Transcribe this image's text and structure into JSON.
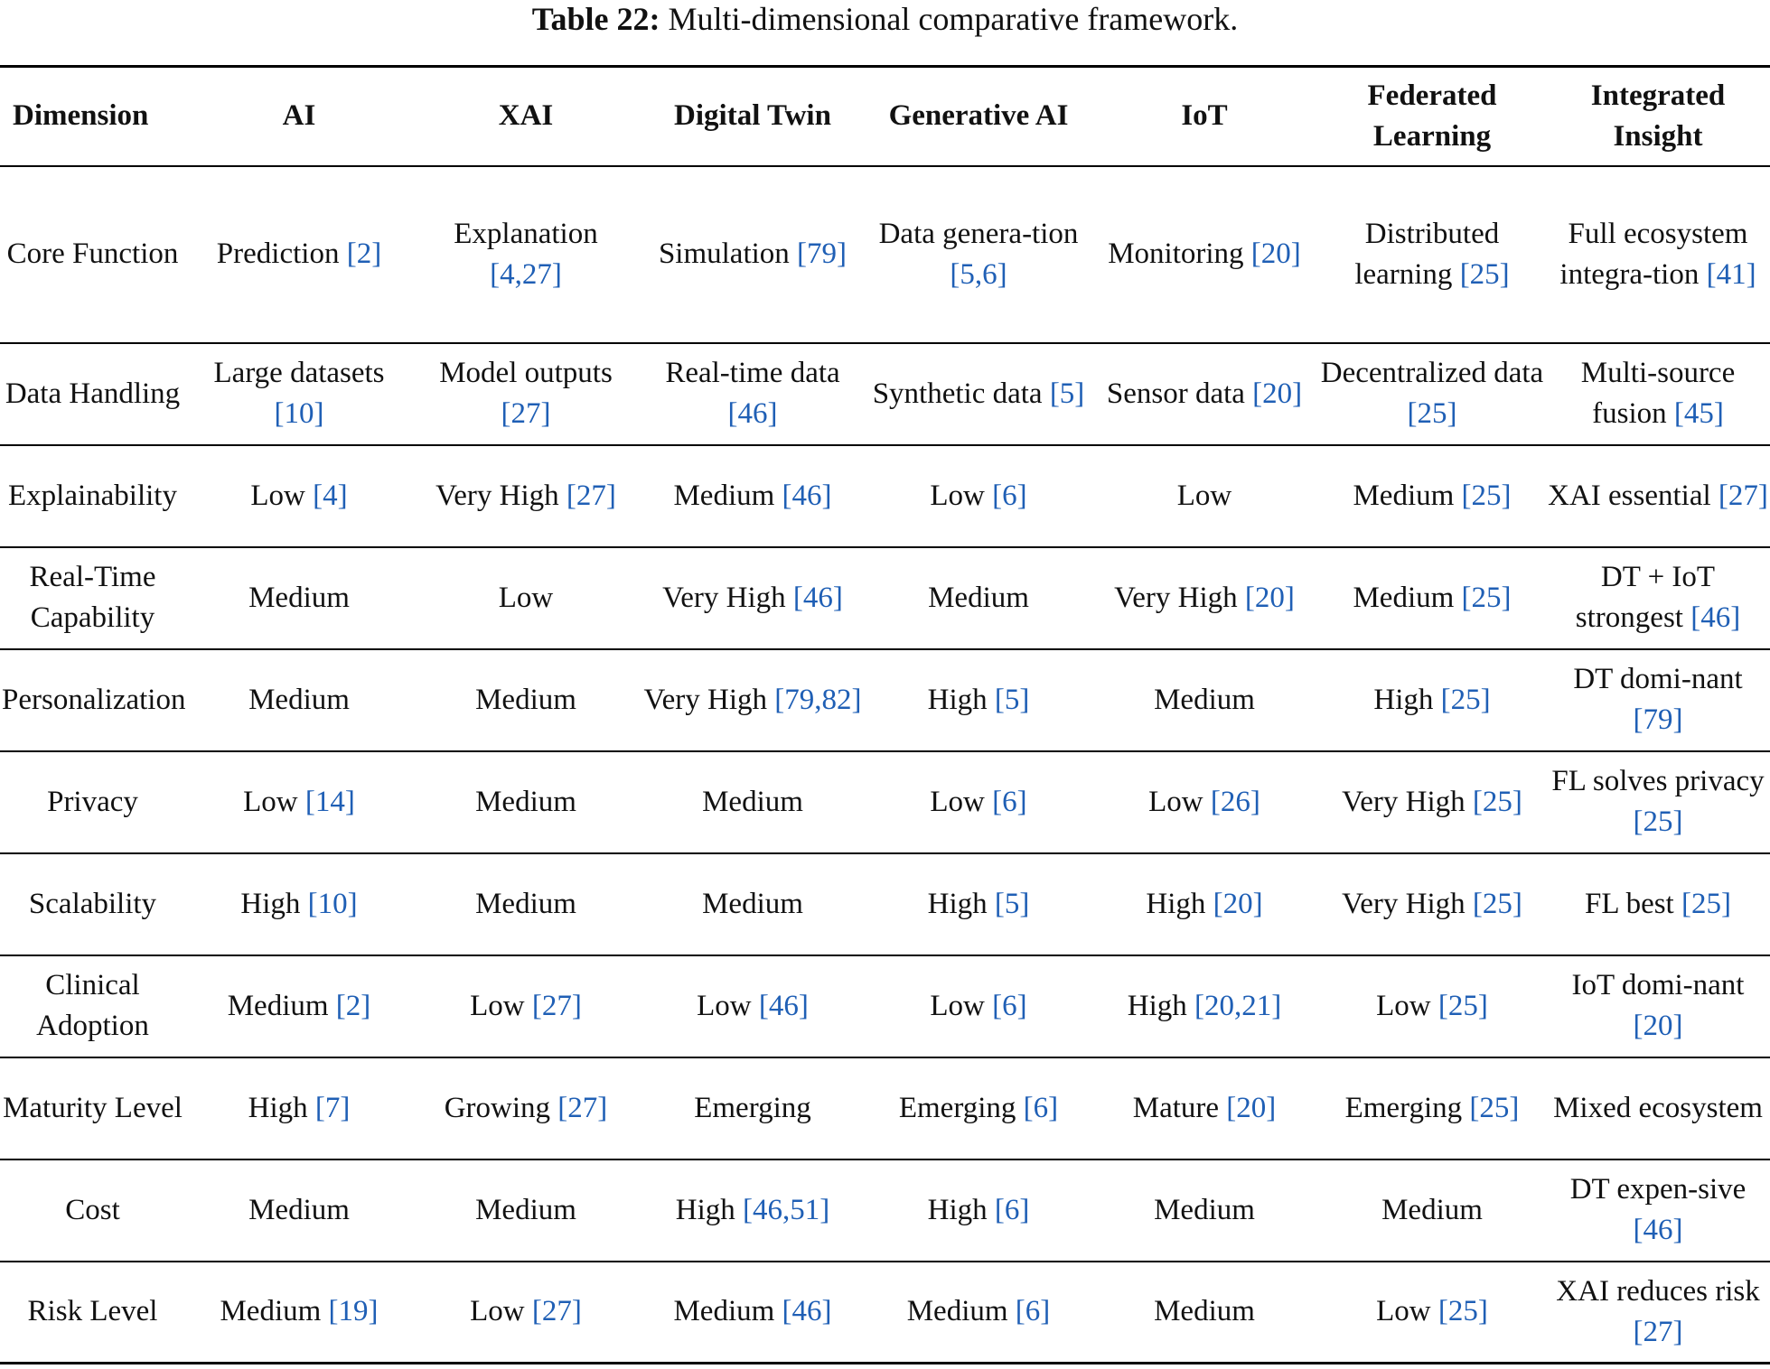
{
  "caption": {
    "label": "Table 22:",
    "text": " Multi-dimensional comparative framework."
  },
  "headers": [
    "Dimension",
    "AI",
    "XAI",
    "Digital Twin",
    "Generative AI",
    "IoT",
    "Federated Learning",
    "Integrated Insight"
  ],
  "rows": [
    {
      "dimension": "Core Function",
      "cells": [
        {
          "text": "Prediction ",
          "cite": "[2]"
        },
        {
          "text": "Explanation ",
          "cite": "[4,27]"
        },
        {
          "text": "Simulation ",
          "cite": "[79]"
        },
        {
          "text": "Data genera-tion ",
          "cite": "[5,6]"
        },
        {
          "text": "Monitoring ",
          "cite": "[20]"
        },
        {
          "text": "Distributed learning ",
          "cite": "[25]"
        },
        {
          "text": "Full ecosystem integra-tion ",
          "cite": "[41]"
        }
      ]
    },
    {
      "dimension": "Data Handling",
      "cells": [
        {
          "text": "Large datasets ",
          "cite": "[10]"
        },
        {
          "text": "Model outputs ",
          "cite": "[27]"
        },
        {
          "text": "Real-time data ",
          "cite": "[46]"
        },
        {
          "text": "Synthetic data ",
          "cite": "[5]"
        },
        {
          "text": "Sensor data ",
          "cite": "[20]"
        },
        {
          "text": "Decentralized data ",
          "cite": "[25]"
        },
        {
          "text": "Multi-source fusion ",
          "cite": "[45]"
        }
      ]
    },
    {
      "dimension": "Explainability",
      "cells": [
        {
          "text": "Low ",
          "cite": "[4]"
        },
        {
          "text": "Very High ",
          "cite": "[27]"
        },
        {
          "text": "Medium ",
          "cite": "[46]"
        },
        {
          "text": "Low ",
          "cite": "[6]"
        },
        {
          "text": "Low",
          "cite": ""
        },
        {
          "text": "Medium ",
          "cite": "[25]"
        },
        {
          "text": "XAI essential ",
          "cite": "[27]"
        }
      ]
    },
    {
      "dimension": "Real-Time Capability",
      "cells": [
        {
          "text": "Medium",
          "cite": ""
        },
        {
          "text": "Low",
          "cite": ""
        },
        {
          "text": "Very High ",
          "cite": "[46]"
        },
        {
          "text": "Medium",
          "cite": ""
        },
        {
          "text": "Very High ",
          "cite": "[20]"
        },
        {
          "text": "Medium ",
          "cite": "[25]"
        },
        {
          "text": "DT + IoT strongest ",
          "cite": "[46]"
        }
      ]
    },
    {
      "dimension": "Personalization",
      "cells": [
        {
          "text": "Medium",
          "cite": ""
        },
        {
          "text": "Medium",
          "cite": ""
        },
        {
          "text": "Very High ",
          "cite": "[79,82]"
        },
        {
          "text": "High ",
          "cite": "[5]"
        },
        {
          "text": "Medium",
          "cite": ""
        },
        {
          "text": "High ",
          "cite": "[25]"
        },
        {
          "text": "DT domi-nant ",
          "cite": "[79]"
        }
      ]
    },
    {
      "dimension": "Privacy",
      "cells": [
        {
          "text": "Low ",
          "cite": "[14]"
        },
        {
          "text": "Medium",
          "cite": ""
        },
        {
          "text": "Medium",
          "cite": ""
        },
        {
          "text": "Low ",
          "cite": "[6]"
        },
        {
          "text": "Low ",
          "cite": "[26]"
        },
        {
          "text": "Very High ",
          "cite": "[25]"
        },
        {
          "text": "FL solves privacy ",
          "cite": "[25]"
        }
      ]
    },
    {
      "dimension": "Scalability",
      "cells": [
        {
          "text": "High ",
          "cite": "[10]"
        },
        {
          "text": "Medium",
          "cite": ""
        },
        {
          "text": "Medium",
          "cite": ""
        },
        {
          "text": "High ",
          "cite": "[5]"
        },
        {
          "text": "High ",
          "cite": "[20]"
        },
        {
          "text": "Very High ",
          "cite": "[25]"
        },
        {
          "text": "FL best ",
          "cite": "[25]"
        }
      ]
    },
    {
      "dimension": "Clinical Adoption",
      "cells": [
        {
          "text": "Medium ",
          "cite": "[2]"
        },
        {
          "text": "Low ",
          "cite": "[27]"
        },
        {
          "text": "Low ",
          "cite": "[46]"
        },
        {
          "text": "Low ",
          "cite": "[6]"
        },
        {
          "text": "High ",
          "cite": "[20,21]"
        },
        {
          "text": "Low ",
          "cite": "[25]"
        },
        {
          "text": "IoT domi-nant ",
          "cite": "[20]"
        }
      ]
    },
    {
      "dimension": "Maturity Level",
      "cells": [
        {
          "text": "High ",
          "cite": "[7]"
        },
        {
          "text": "Growing ",
          "cite": "[27]"
        },
        {
          "text": "Emerging",
          "cite": ""
        },
        {
          "text": "Emerging ",
          "cite": "[6]"
        },
        {
          "text": "Mature ",
          "cite": "[20]"
        },
        {
          "text": "Emerging ",
          "cite": "[25]"
        },
        {
          "text": "Mixed ecosystem",
          "cite": ""
        }
      ]
    },
    {
      "dimension": "Cost",
      "cells": [
        {
          "text": "Medium",
          "cite": ""
        },
        {
          "text": "Medium",
          "cite": ""
        },
        {
          "text": "High ",
          "cite": "[46,51]"
        },
        {
          "text": "High ",
          "cite": "[6]"
        },
        {
          "text": "Medium",
          "cite": ""
        },
        {
          "text": "Medium",
          "cite": ""
        },
        {
          "text": "DT expen-sive ",
          "cite": "[46]"
        }
      ]
    },
    {
      "dimension": "Risk Level",
      "cells": [
        {
          "text": "Medium ",
          "cite": "[19]"
        },
        {
          "text": "Low ",
          "cite": "[27]"
        },
        {
          "text": "Medium ",
          "cite": "[46]"
        },
        {
          "text": "Medium ",
          "cite": "[6]"
        },
        {
          "text": "Medium",
          "cite": ""
        },
        {
          "text": "Low ",
          "cite": "[25]"
        },
        {
          "text": "XAI reduces risk ",
          "cite": "[27]"
        }
      ]
    }
  ],
  "colors": {
    "citation": "#1f5fb5",
    "text": "#111111",
    "rule": "#000000"
  }
}
